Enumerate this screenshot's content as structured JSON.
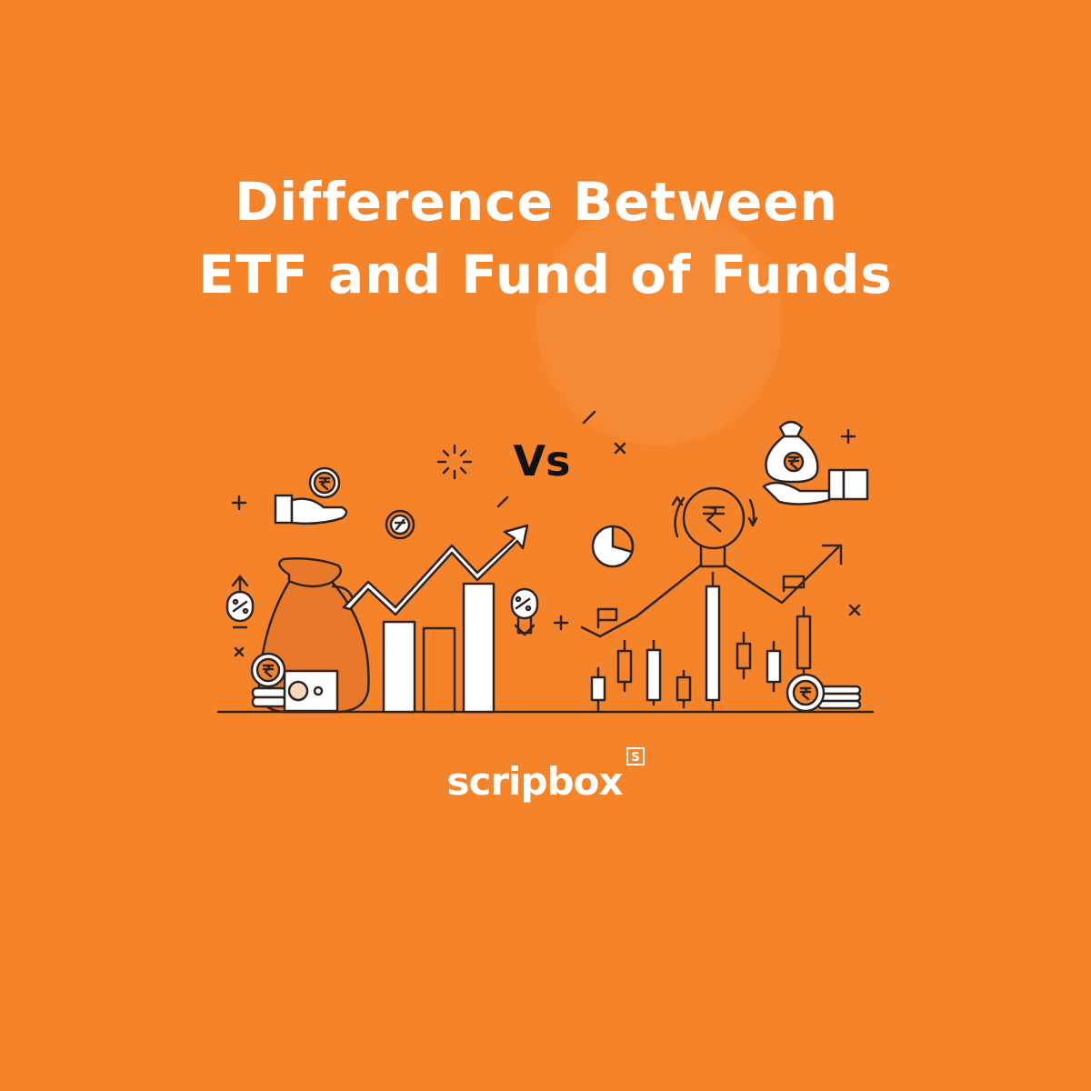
{
  "title": {
    "line1": "Difference Between",
    "line2": "ETF and Fund of Funds"
  },
  "versus": "Vs",
  "logo": {
    "name": "scripbox",
    "badge": "S"
  }
}
